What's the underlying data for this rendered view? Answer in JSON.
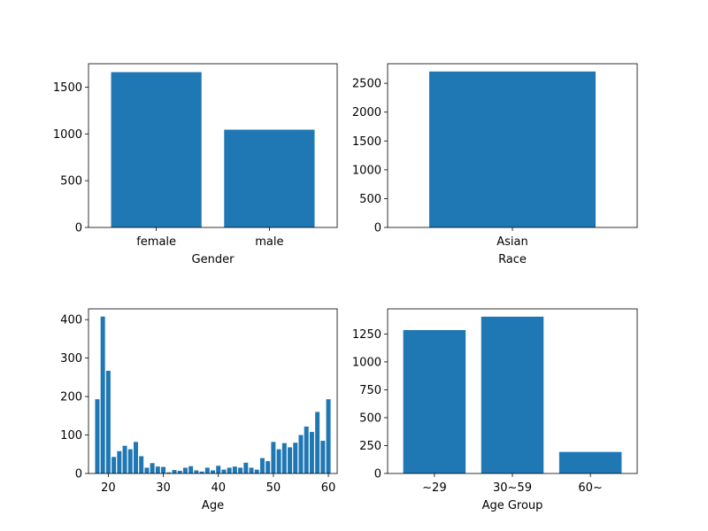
{
  "chart_data": [
    {
      "type": "bar",
      "xlabel": "Gender",
      "ylabel": "",
      "categories": [
        "female",
        "male"
      ],
      "values": [
        1660,
        1045
      ],
      "ylim": [
        0,
        1750
      ],
      "yticks": [
        0,
        500,
        1000,
        1500
      ],
      "color": "#1f77b4",
      "grid": false
    },
    {
      "type": "bar",
      "xlabel": "Race",
      "ylabel": "",
      "categories": [
        "Asian"
      ],
      "values": [
        2705
      ],
      "ylim": [
        0,
        2840
      ],
      "yticks": [
        0,
        500,
        1000,
        1500,
        2000,
        2500
      ],
      "color": "#1f77b4",
      "grid": false
    },
    {
      "type": "bar",
      "xlabel": "Age",
      "ylabel": "",
      "x": [
        18,
        19,
        20,
        21,
        22,
        23,
        24,
        25,
        26,
        27,
        28,
        29,
        30,
        31,
        32,
        33,
        34,
        35,
        36,
        37,
        38,
        39,
        40,
        41,
        42,
        43,
        44,
        45,
        46,
        47,
        48,
        49,
        50,
        51,
        52,
        53,
        54,
        55,
        56,
        57,
        58,
        59,
        60
      ],
      "values": [
        193,
        408,
        267,
        43,
        58,
        72,
        63,
        82,
        45,
        15,
        27,
        18,
        17,
        3,
        9,
        7,
        15,
        19,
        8,
        5,
        15,
        8,
        20,
        10,
        15,
        18,
        15,
        28,
        15,
        10,
        40,
        32,
        82,
        63,
        79,
        68,
        80,
        100,
        122,
        108,
        160,
        85,
        193
      ],
      "xlim": [
        16.4,
        61.6
      ],
      "xticks": [
        20,
        30,
        40,
        50,
        60
      ],
      "ylim": [
        0,
        428
      ],
      "yticks": [
        0,
        100,
        200,
        300,
        400
      ],
      "color": "#1f77b4",
      "grid": false
    },
    {
      "type": "bar",
      "xlabel": "Age Group",
      "ylabel": "",
      "categories": [
        "~29",
        "30~59",
        "60~"
      ],
      "values": [
        1285,
        1405,
        193
      ],
      "ylim": [
        0,
        1475
      ],
      "yticks": [
        0,
        250,
        500,
        750,
        1000,
        1250
      ],
      "color": "#1f77b4",
      "grid": false
    }
  ]
}
